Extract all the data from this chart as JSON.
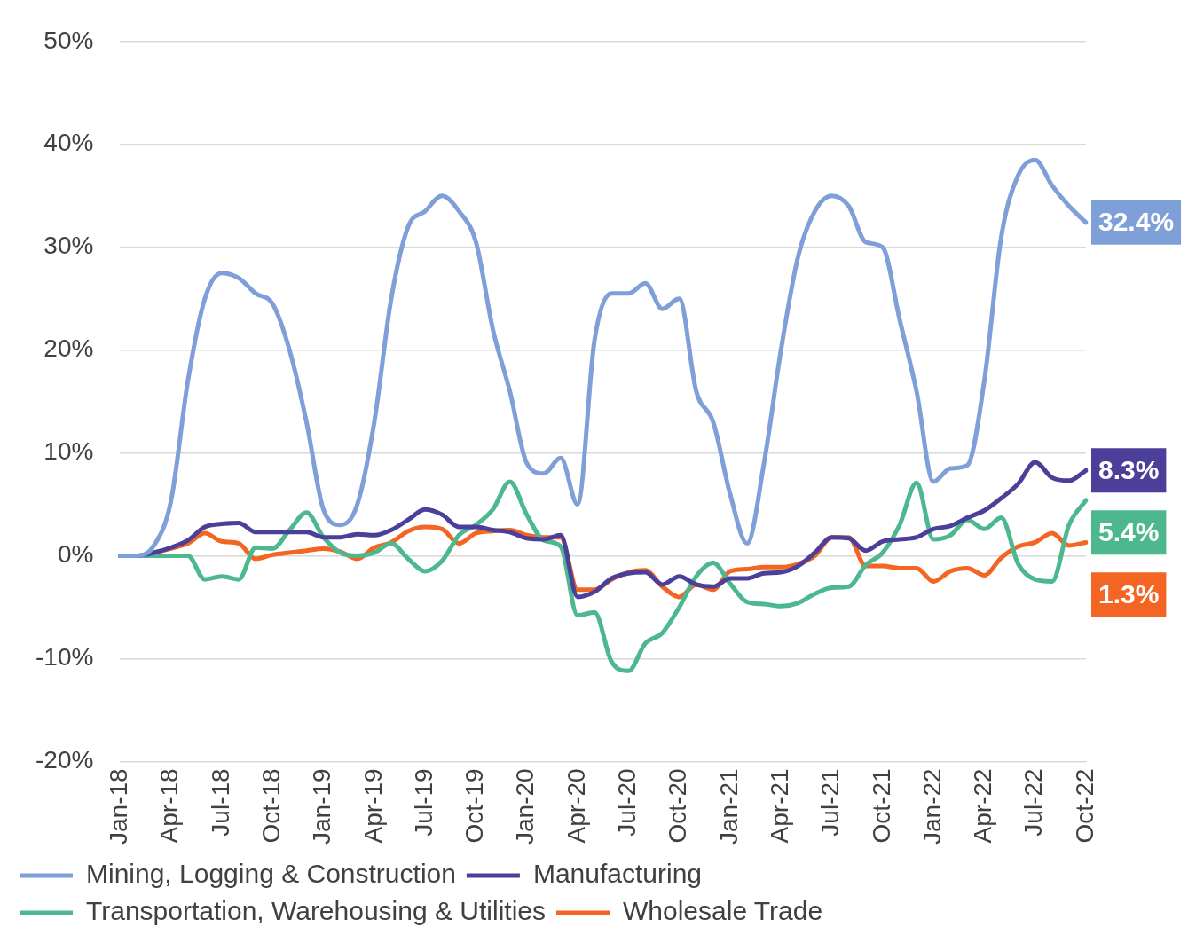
{
  "chart_data": {
    "type": "line",
    "categories": [
      "Jan-18",
      null,
      null,
      "Apr-18",
      null,
      null,
      "Jul-18",
      null,
      null,
      "Oct-18",
      null,
      null,
      "Jan-19",
      null,
      null,
      "Apr-19",
      null,
      null,
      "Jul-19",
      null,
      null,
      "Oct-19",
      null,
      null,
      "Jan-20",
      null,
      null,
      "Apr-20",
      null,
      null,
      "Jul-20",
      null,
      null,
      "Oct-20",
      null,
      null,
      "Jan-21",
      null,
      null,
      "Apr-21",
      null,
      null,
      "Jul-21",
      null,
      null,
      "Oct-21",
      null,
      null,
      "Jan-22",
      null,
      null,
      "Apr-22",
      null,
      null,
      "Jul-22",
      null,
      null,
      "Oct-22"
    ],
    "series": [
      {
        "name": "Mining, Logging & Construction",
        "color": "#7f9fd8",
        "values": [
          0,
          0,
          1,
          5.3,
          17,
          25,
          27.5,
          27,
          25.5,
          24.5,
          20,
          13,
          4.5,
          3,
          5,
          13,
          25,
          32,
          33.5,
          35,
          33.5,
          30.5,
          22,
          16,
          9,
          8,
          9.5,
          5,
          21,
          25.5,
          25.5,
          26.5,
          24,
          25,
          16,
          13,
          6,
          1.2,
          9,
          20,
          29,
          33.5,
          35,
          34,
          30.5,
          30,
          23,
          16,
          7.2,
          8.5,
          8.8,
          17,
          31,
          37,
          38.5,
          36,
          34,
          32.4
        ],
        "value_labels": [
          null,
          null,
          null,
          null,
          null,
          null,
          null,
          null,
          null,
          null,
          null,
          null,
          null,
          null,
          null,
          null,
          null,
          null,
          null,
          null,
          null,
          null,
          null,
          null,
          null,
          null,
          null,
          null,
          null,
          null,
          null,
          null,
          null,
          null,
          null,
          null,
          null,
          null,
          null,
          null,
          null,
          null,
          null,
          null,
          null,
          null,
          null,
          null,
          null,
          null,
          null,
          null,
          null,
          null,
          null,
          null,
          null,
          "32.4%"
        ]
      },
      {
        "name": "Manufacturing",
        "color": "#4b3f99",
        "values": [
          0,
          0,
          0.3,
          0.8,
          1.5,
          2.8,
          3.1,
          3.2,
          2.3,
          2.3,
          2.3,
          2.3,
          1.8,
          1.8,
          2.1,
          2,
          2.5,
          3.5,
          4.5,
          4,
          2.8,
          2.8,
          2.5,
          2.3,
          1.7,
          1.6,
          2,
          -4,
          -3.5,
          -2.2,
          -1.7,
          -1.6,
          -2.8,
          -2,
          -2.8,
          -3,
          -2.2,
          -2.2,
          -1.7,
          -1.6,
          -1,
          0.3,
          1.8,
          1.7,
          0.5,
          1.4,
          1.6,
          1.8,
          2.6,
          2.9,
          3.7,
          4.4,
          5.6,
          7,
          9.1,
          7.6,
          7.3,
          8.3
        ],
        "value_labels": [
          null,
          null,
          null,
          null,
          null,
          null,
          null,
          null,
          null,
          null,
          null,
          null,
          null,
          null,
          null,
          null,
          null,
          null,
          null,
          null,
          null,
          null,
          null,
          null,
          null,
          null,
          null,
          null,
          null,
          null,
          null,
          null,
          null,
          null,
          null,
          null,
          null,
          null,
          null,
          null,
          null,
          null,
          null,
          null,
          null,
          null,
          null,
          null,
          null,
          null,
          null,
          null,
          null,
          null,
          null,
          null,
          null,
          "8.3%"
        ]
      },
      {
        "name": "Transportation, Warehousing & Utilities",
        "color": "#4db890",
        "values": [
          0,
          0,
          0,
          0,
          0,
          -2.3,
          -2,
          -2.3,
          0.8,
          0.7,
          2.5,
          4.2,
          1.8,
          0.3,
          0,
          0.3,
          1.2,
          -0.3,
          -1.5,
          -0.5,
          2,
          3,
          4.5,
          7.2,
          4,
          1.5,
          0.9,
          -5.8,
          -5.5,
          -10.3,
          -11.2,
          -8.5,
          -7.5,
          -5,
          -2,
          -0.7,
          -2.7,
          -4.5,
          -4.7,
          -4.9,
          -4.6,
          -3.7,
          -3.1,
          -3,
          -0.9,
          0.3,
          3,
          7.1,
          1.6,
          2,
          3.5,
          2.6,
          3.7,
          -0.8,
          -2.3,
          -2.5,
          3,
          5.4
        ],
        "value_labels": [
          null,
          null,
          null,
          null,
          null,
          null,
          null,
          null,
          null,
          null,
          null,
          null,
          null,
          null,
          null,
          null,
          null,
          null,
          null,
          null,
          null,
          null,
          null,
          null,
          null,
          null,
          null,
          null,
          null,
          null,
          null,
          null,
          null,
          null,
          null,
          null,
          null,
          null,
          null,
          null,
          null,
          null,
          null,
          null,
          null,
          null,
          null,
          null,
          null,
          null,
          null,
          null,
          null,
          null,
          null,
          null,
          null,
          "5.4%"
        ]
      },
      {
        "name": "Wholesale Trade",
        "color": "#f26522",
        "values": [
          0,
          0,
          0.3,
          0.7,
          1.2,
          2.2,
          1.4,
          1.2,
          -0.3,
          0.1,
          0.3,
          0.5,
          0.7,
          0.4,
          -0.3,
          0.8,
          1.3,
          2.4,
          2.8,
          2.6,
          1.2,
          2.2,
          2.4,
          2.5,
          2,
          1.8,
          1.8,
          -3.3,
          -3.3,
          -2.3,
          -1.6,
          -1.4,
          -3,
          -4,
          -2.8,
          -3.3,
          -1.5,
          -1.3,
          -1.1,
          -1.1,
          -0.8,
          0,
          1.8,
          1.8,
          -1,
          -1,
          -1.2,
          -1.2,
          -2.5,
          -1.5,
          -1.2,
          -1.9,
          -0.2,
          0.9,
          1.3,
          2.2,
          1,
          1.3
        ],
        "value_labels": [
          null,
          null,
          null,
          null,
          null,
          null,
          null,
          null,
          null,
          null,
          null,
          null,
          null,
          null,
          null,
          null,
          null,
          null,
          null,
          null,
          null,
          null,
          null,
          null,
          null,
          null,
          null,
          null,
          null,
          null,
          null,
          null,
          null,
          null,
          null,
          null,
          null,
          null,
          null,
          null,
          null,
          null,
          null,
          null,
          null,
          null,
          null,
          null,
          null,
          null,
          null,
          null,
          null,
          null,
          null,
          null,
          null,
          "1.3%"
        ]
      }
    ],
    "ylim": [
      -20,
      50
    ],
    "yticks": [
      {
        "value": -20,
        "label": "-20%"
      },
      {
        "value": -10,
        "label": "-10%"
      },
      {
        "value": 0,
        "label": "0%"
      },
      {
        "value": 10,
        "label": "10%"
      },
      {
        "value": 20,
        "label": "20%"
      },
      {
        "value": 30,
        "label": "30%"
      },
      {
        "value": 40,
        "label": "40%"
      },
      {
        "value": 50,
        "label": "50%"
      }
    ],
    "grid": "y",
    "legend": "bottom",
    "marker": "none",
    "line_style": "solid"
  }
}
